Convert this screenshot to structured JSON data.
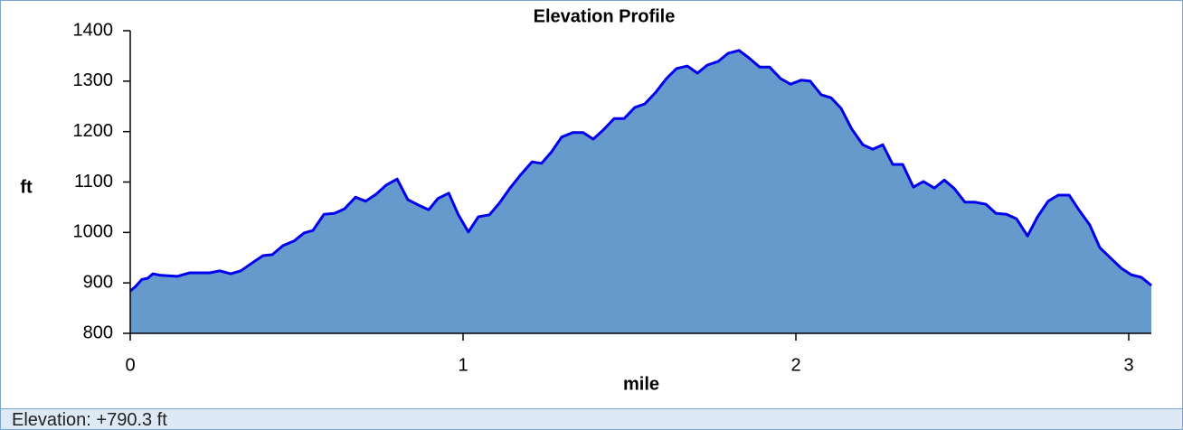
{
  "chart_data": {
    "type": "area",
    "title": "Elevation Profile",
    "x_label": "mile",
    "y_label": "ft",
    "x": [
      0,
      0.016,
      0.035,
      0.052,
      0.068,
      0.092,
      0.141,
      0.179,
      0.239,
      0.269,
      0.302,
      0.332,
      0.367,
      0.399,
      0.427,
      0.459,
      0.492,
      0.522,
      0.549,
      0.582,
      0.614,
      0.644,
      0.677,
      0.707,
      0.739,
      0.769,
      0.802,
      0.834,
      0.867,
      0.897,
      0.924,
      0.957,
      0.986,
      1.016,
      1.046,
      1.079,
      1.109,
      1.141,
      1.174,
      1.207,
      1.236,
      1.266,
      1.296,
      1.329,
      1.361,
      1.391,
      1.421,
      1.454,
      1.484,
      1.516,
      1.546,
      1.579,
      1.611,
      1.641,
      1.674,
      1.704,
      1.734,
      1.766,
      1.796,
      1.829,
      1.859,
      1.891,
      1.921,
      1.954,
      1.984,
      2.016,
      2.043,
      2.076,
      2.106,
      2.136,
      2.168,
      2.201,
      2.231,
      2.261,
      2.291,
      2.321,
      2.353,
      2.383,
      2.416,
      2.446,
      2.476,
      2.508,
      2.538,
      2.571,
      2.601,
      2.633,
      2.663,
      2.696,
      2.726,
      2.758,
      2.788,
      2.821,
      2.851,
      2.883,
      2.913,
      2.946,
      2.978,
      3.008,
      3.038,
      3.068
    ],
    "values": [
      884,
      893,
      907,
      909,
      918,
      915,
      913,
      920,
      920,
      924,
      918,
      924,
      940,
      954,
      956,
      974,
      983,
      999,
      1004,
      1036,
      1038,
      1047,
      1070,
      1062,
      1076,
      1094,
      1106,
      1065,
      1054,
      1045,
      1067,
      1078,
      1035,
      1001,
      1031,
      1035,
      1058,
      1088,
      1115,
      1140,
      1137,
      1160,
      1189,
      1198,
      1198,
      1185,
      1203,
      1226,
      1226,
      1248,
      1255,
      1278,
      1305,
      1325,
      1330,
      1316,
      1332,
      1339,
      1355,
      1361,
      1346,
      1328,
      1328,
      1305,
      1294,
      1302,
      1300,
      1273,
      1267,
      1246,
      1205,
      1174,
      1165,
      1174,
      1135,
      1135,
      1090,
      1101,
      1088,
      1104,
      1087,
      1060,
      1060,
      1056,
      1038,
      1036,
      1027,
      993,
      1031,
      1062,
      1074,
      1074,
      1044,
      1015,
      970,
      949,
      929,
      916,
      911,
      895
    ],
    "fill_color": "#6699cc",
    "line_color": "#0000ee",
    "xlim": [
      0,
      3.068
    ],
    "xticks": [
      0,
      1,
      2,
      3
    ],
    "ylim": [
      800,
      1400
    ],
    "yticks": [
      800,
      900,
      1000,
      1100,
      1200,
      1300,
      1400
    ]
  },
  "status_bar": "Elevation: +790.3 ft"
}
